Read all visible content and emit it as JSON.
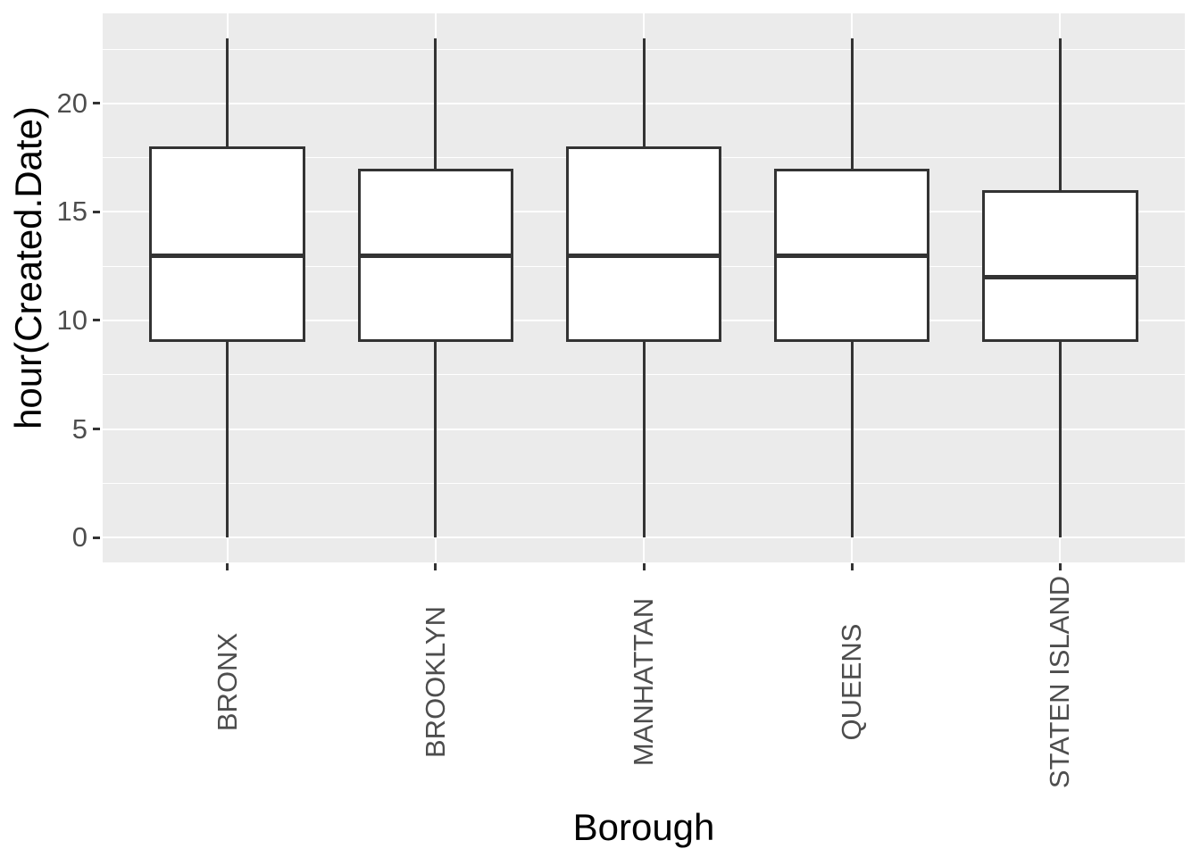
{
  "chart_data": {
    "type": "boxplot",
    "title": "",
    "xlabel": "Borough",
    "ylabel": "hour(Created.Date)",
    "categories": [
      "BRONX",
      "BROOKLYN",
      "MANHATTAN",
      "QUEENS",
      "STATEN ISLAND"
    ],
    "boxes": [
      {
        "category": "BRONX",
        "min": 0,
        "q1": 9,
        "median": 13,
        "q3": 18,
        "max": 23
      },
      {
        "category": "BROOKLYN",
        "min": 0,
        "q1": 9,
        "median": 13,
        "q3": 17,
        "max": 23
      },
      {
        "category": "MANHATTAN",
        "min": 0,
        "q1": 9,
        "median": 13,
        "q3": 18,
        "max": 23
      },
      {
        "category": "QUEENS",
        "min": 0,
        "q1": 9,
        "median": 13,
        "q3": 17,
        "max": 23
      },
      {
        "category": "STATEN ISLAND",
        "min": 0,
        "q1": 9,
        "median": 12,
        "q3": 16,
        "max": 23
      }
    ],
    "y_ticks": [
      0,
      5,
      10,
      15,
      20
    ],
    "y_minor_ticks": [
      2.5,
      7.5,
      12.5,
      17.5,
      22.5
    ],
    "ylim": [
      -1.15,
      24.15
    ],
    "box_width_fraction": 0.75,
    "grid": "major-and-minor, white on gray panel",
    "legend": "none",
    "colors": {
      "panel_background": "#EBEBEB",
      "gridline": "#FFFFFF",
      "box_stroke": "#333333",
      "box_fill": "#FFFFFF",
      "axis_text": "#4D4D4D",
      "axis_title": "#000000",
      "tick_mark": "#333333"
    }
  }
}
